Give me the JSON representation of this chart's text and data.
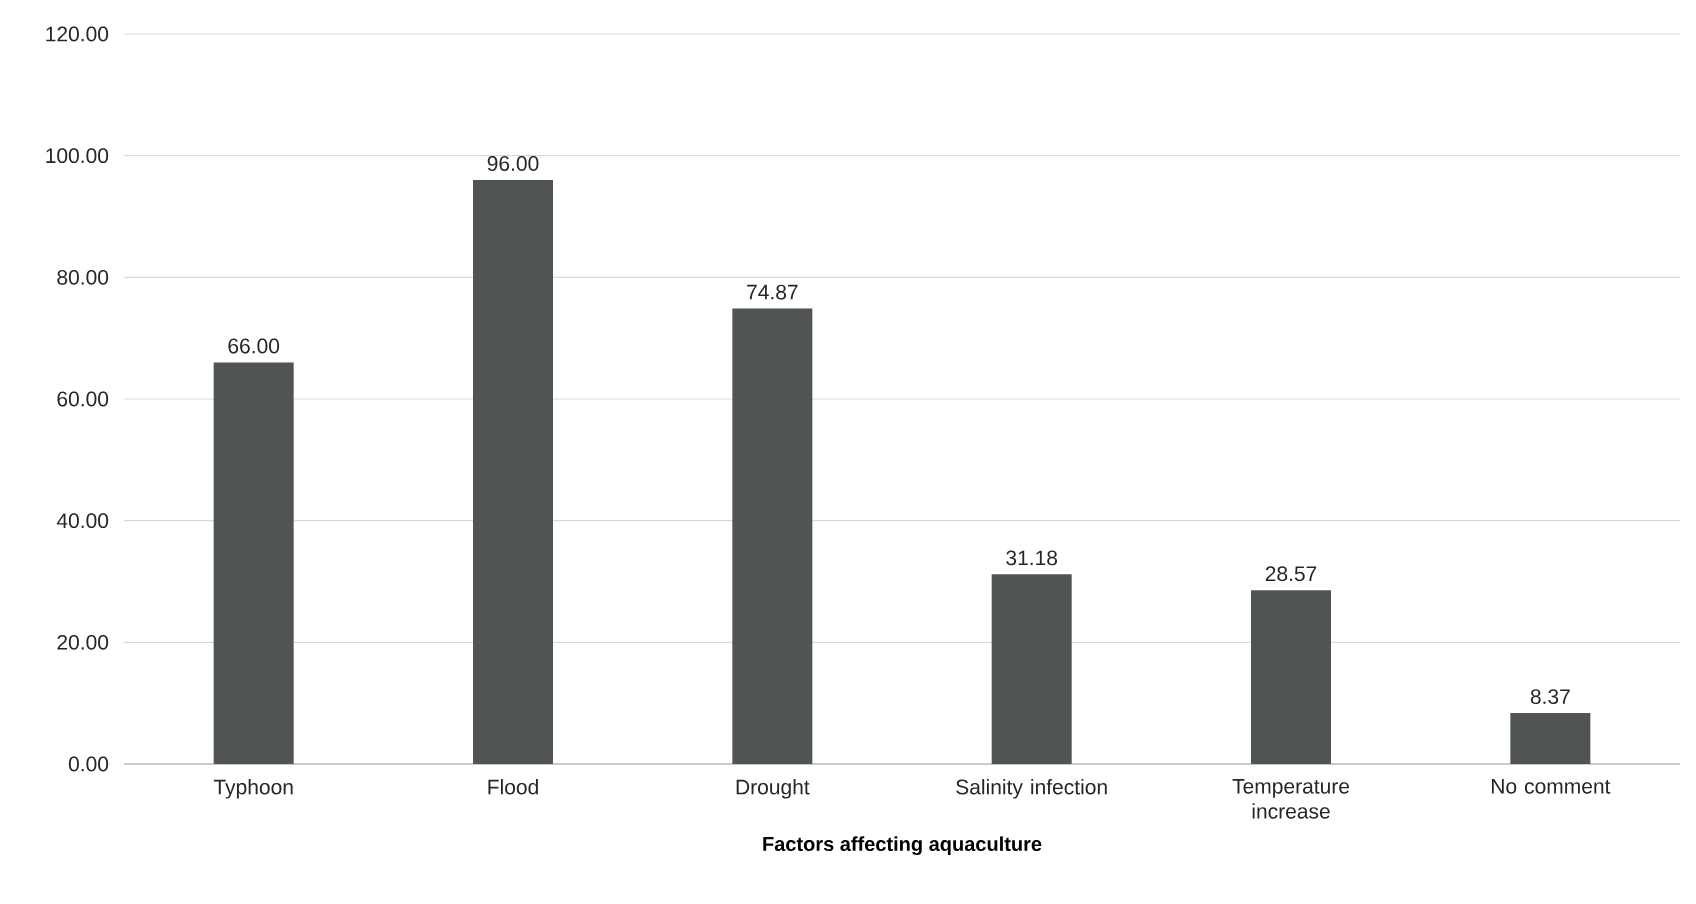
{
  "chart_data": {
    "type": "bar",
    "xlabel": "Factors affecting aquaculture",
    "categories": [
      "Typhoon",
      "Flood",
      "Drought",
      "Salinity infection",
      "Temperature increase",
      "No comment"
    ],
    "values": [
      66.0,
      96.0,
      74.87,
      31.18,
      28.57,
      8.37
    ],
    "value_labels": [
      "66.00",
      "96.00",
      "74.87",
      "31.18",
      "28.57",
      "8.37"
    ],
    "color": "#505454",
    "ylim": [
      0,
      120
    ],
    "yticks": [
      {
        "value": 0,
        "label": "0.00"
      },
      {
        "value": 20,
        "label": "20.00"
      },
      {
        "value": 40,
        "label": "40.00"
      },
      {
        "value": 60,
        "label": "60.00"
      },
      {
        "value": 80,
        "label": "80.00"
      },
      {
        "value": 100,
        "label": "100.00"
      },
      {
        "value": 120,
        "label": "120.00"
      }
    ],
    "grid": "y"
  }
}
